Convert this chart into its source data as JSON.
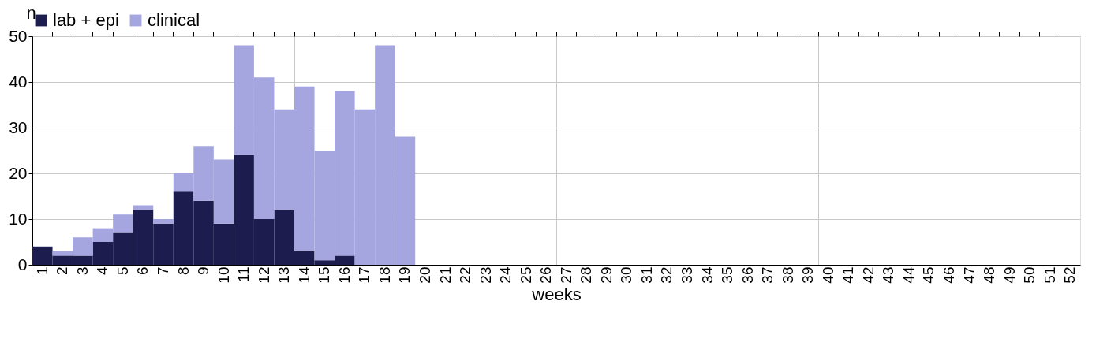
{
  "chart_data": {
    "type": "bar",
    "stacked": true,
    "xlabel": "weeks",
    "ylabel": "n",
    "categories": [
      "1",
      "2",
      "3",
      "4",
      "5",
      "6",
      "7",
      "8",
      "9",
      "10",
      "11",
      "12",
      "13",
      "14",
      "15",
      "16",
      "17",
      "18",
      "19",
      "20",
      "21",
      "22",
      "23",
      "24",
      "25",
      "26",
      "27",
      "28",
      "29",
      "30",
      "31",
      "32",
      "33",
      "34",
      "35",
      "36",
      "37",
      "38",
      "39",
      "40",
      "41",
      "42",
      "43",
      "44",
      "45",
      "46",
      "47",
      "48",
      "49",
      "50",
      "51",
      "52"
    ],
    "series": [
      {
        "name": "lab + epi",
        "color": "#1c1c4f",
        "values": [
          4,
          2,
          2,
          5,
          7,
          12,
          9,
          16,
          14,
          9,
          24,
          10,
          12,
          3,
          1,
          2,
          0,
          0,
          0,
          0,
          0,
          0,
          0,
          0,
          0,
          0,
          0,
          0,
          0,
          0,
          0,
          0,
          0,
          0,
          0,
          0,
          0,
          0,
          0,
          0,
          0,
          0,
          0,
          0,
          0,
          0,
          0,
          0,
          0,
          0,
          0,
          0
        ]
      },
      {
        "name": "clinical",
        "color": "#a5a5df",
        "values": [
          0,
          1,
          4,
          3,
          4,
          1,
          1,
          4,
          12,
          14,
          24,
          31,
          22,
          36,
          24,
          36,
          34,
          48,
          28,
          0,
          0,
          0,
          0,
          0,
          0,
          0,
          0,
          0,
          0,
          0,
          0,
          0,
          0,
          0,
          0,
          0,
          0,
          0,
          0,
          0,
          0,
          0,
          0,
          0,
          0,
          0,
          0,
          0,
          0,
          0,
          0,
          0
        ]
      }
    ],
    "ylim": [
      0,
      50
    ],
    "yticks": [
      0,
      10,
      20,
      30,
      40,
      50
    ],
    "grid": true,
    "legend": "top"
  }
}
